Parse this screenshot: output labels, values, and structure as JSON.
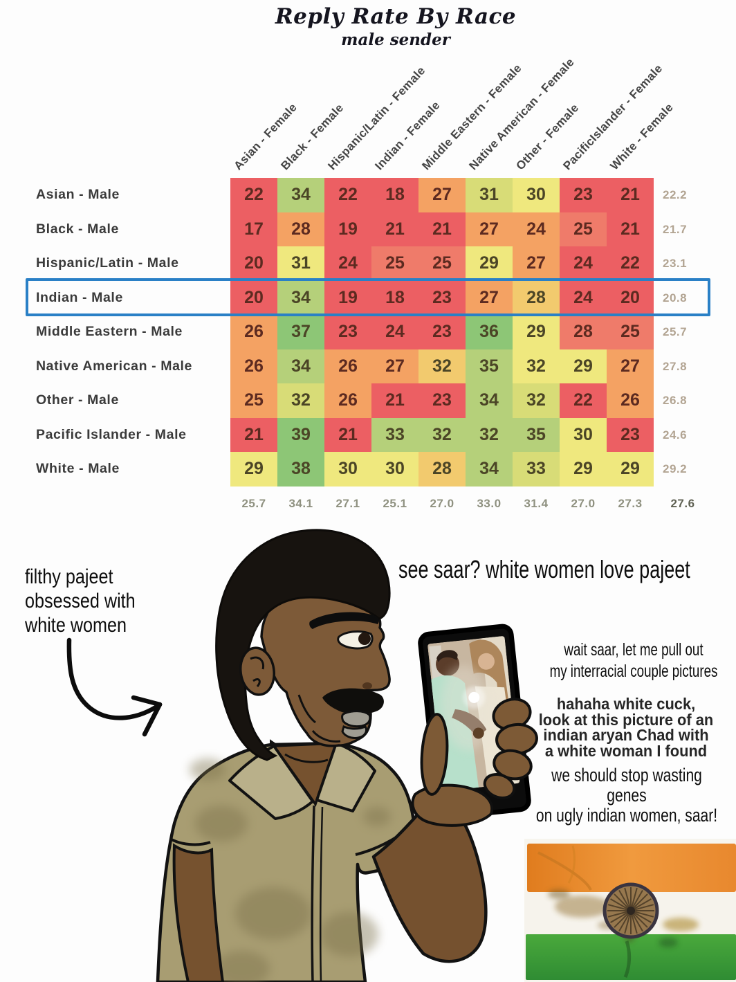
{
  "chart_data": {
    "type": "heatmap",
    "title": "Reply Rate By Race",
    "subtitle": "male sender",
    "x_categories": [
      "Asian - Female",
      "Black - Female",
      "Hispanic/Latin - Female",
      "Indian - Female",
      "Middle Eastern - Female",
      "Native American - Female",
      "Other - Female",
      "PacificIslander - Female",
      "White - Female"
    ],
    "y_categories": [
      "Asian - Male",
      "Black - Male",
      "Hispanic/Latin - Male",
      "Indian - Male",
      "Middle Eastern - Male",
      "Native American - Male",
      "Other - Male",
      "Pacific Islander - Male",
      "White - Male"
    ],
    "values": [
      [
        22,
        34,
        22,
        18,
        27,
        31,
        30,
        23,
        21
      ],
      [
        17,
        28,
        19,
        21,
        21,
        27,
        24,
        25,
        21
      ],
      [
        20,
        31,
        24,
        25,
        25,
        29,
        27,
        24,
        22
      ],
      [
        20,
        34,
        19,
        18,
        23,
        27,
        28,
        24,
        20
      ],
      [
        26,
        37,
        23,
        24,
        23,
        36,
        29,
        28,
        25
      ],
      [
        26,
        34,
        26,
        27,
        32,
        35,
        32,
        29,
        27
      ],
      [
        25,
        32,
        26,
        21,
        23,
        34,
        32,
        22,
        26
      ],
      [
        21,
        39,
        21,
        33,
        32,
        32,
        35,
        30,
        23
      ],
      [
        29,
        38,
        30,
        30,
        28,
        34,
        33,
        29,
        29
      ]
    ],
    "cell_colors": [
      "rgrrolyrr",
      "rorrroosr",
      "ryrssyorr",
      "rgrrroqrr",
      "oGrrrGyss",
      "ogooqgyyo",
      "olorrglro",
      "rGrggggyr",
      "yGyyqglyy"
    ],
    "palette": {
      "r": "#ec5f63",
      "s": "#ef7b6a",
      "o": "#f4a263",
      "q": "#f2ca6e",
      "y": "#efe87e",
      "l": "#d8dc77",
      "g": "#b5d07a",
      "G": "#8dc676"
    },
    "number_colors": {
      "warm": "#5c2a20",
      "cool": "#4b4526"
    },
    "row_means": [
      "22.2",
      "21.7",
      "23.1",
      "20.8",
      "25.7",
      "27.8",
      "26.8",
      "24.6",
      "29.2"
    ],
    "col_means": [
      "25.7",
      "34.1",
      "27.1",
      "25.1",
      "27.0",
      "33.0",
      "31.4",
      "27.0",
      "27.3"
    ],
    "overall_mean": "27.6",
    "highlighted_row": "Indian - Male",
    "highlight_color": "#2a80c6",
    "legend_position": "none",
    "grid": false
  },
  "meme": {
    "left_caption_lines": [
      "filthy pajeet",
      "obsessed with",
      "white women"
    ],
    "headline": "see saar? white women love pajeet",
    "wait_lines": [
      "wait saar, let me pull out",
      "my interracial couple pictures"
    ],
    "hahaha_lines": [
      "hahaha white cuck,",
      "look at this picture of an",
      "indian aryan Chad with",
      "a white woman I found"
    ],
    "genes_lines": [
      "we should stop wasting genes",
      "on ugly indian women, saar!"
    ],
    "illustration_colors": {
      "skin": "#7d5a38",
      "hair": "#17130f",
      "shirt": "#a89d72",
      "lips": "#a09d93",
      "phone": "#0c0c0c"
    },
    "flag_colors": {
      "saffron": "#e8882e",
      "white": "#f6f3ec",
      "green": "#3f9d3a"
    }
  }
}
